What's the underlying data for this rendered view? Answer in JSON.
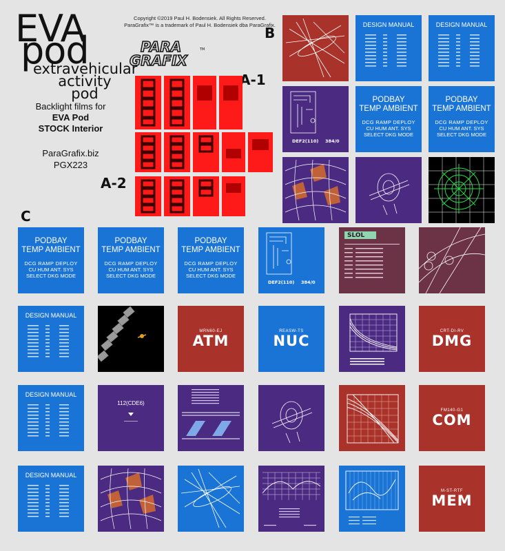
{
  "title": {
    "line1": "EVA",
    "line2": "pod",
    "sub1": "extravehicular",
    "sub2": "activity",
    "sub3": "pod"
  },
  "info": {
    "line1": "Backlight films for",
    "line2": "EVA Pod",
    "line3": "STOCK Interior",
    "site": "ParaGrafix.biz",
    "code": "PGX223"
  },
  "copyright": {
    "line1": "Copyright ©2019 Paul H. Bodensiek. All Rights Reserved.",
    "line2": "ParaGrafix™ is a trademark of Paul H. Bodensiek dba ParaGrafix."
  },
  "logo": {
    "line1": "PARA",
    "line2": "GRAFIX",
    "tm": "TM"
  },
  "labels": {
    "a1": "A-1",
    "a2": "A-2",
    "b": "B",
    "c": "C"
  },
  "tiles": {
    "design_manual": "DESIGN MANUAL",
    "podbay": {
      "line1": "PODBAY",
      "line2": "TEMP AMBIENT",
      "s1": "DCG  RAMP DEPLOY",
      "s2": "CU HUM ANT. SYS",
      "s3": "SELECT DKG MODE"
    },
    "def2": {
      "left": "DEF2(110)",
      "right": "384/0"
    },
    "slol": "SLOL",
    "atm": {
      "small": "MRN60-EJ",
      "word": "ATM"
    },
    "nuc": {
      "small": "REASW-TS",
      "word": "NUC"
    },
    "dmg": {
      "small": "CRT-DI-RV",
      "word": "DMG"
    },
    "com": {
      "small": "FM140-G1",
      "word": "COM"
    },
    "mem": {
      "small": "M-ST-RTF",
      "word": "MEM"
    },
    "cde6": "112(CDE6)"
  },
  "colors": {
    "blue": "#1a74d6",
    "purple": "#4b2a82",
    "red": "#a9322a",
    "film": "#ff1a1a",
    "background": "#e4e4e4"
  }
}
